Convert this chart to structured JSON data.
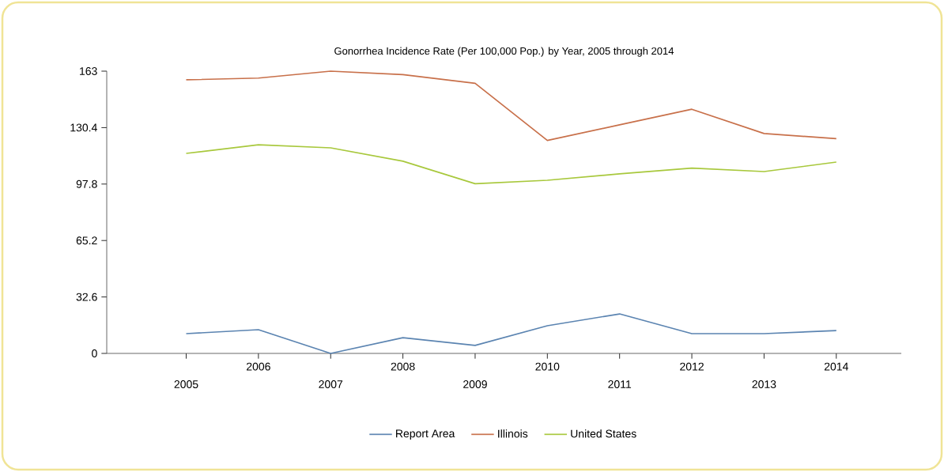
{
  "chart_data": {
    "type": "line",
    "title": "Gonorrhea Incidence Rate (Per 100,000 Pop.) by Year, 2005 through 2014",
    "categories": [
      "2005",
      "2006",
      "2007",
      "2008",
      "2009",
      "2010",
      "2011",
      "2012",
      "2013",
      "2014"
    ],
    "series": [
      {
        "name": "Report Area",
        "color": "#5b84b1",
        "values": [
          11.4,
          13.7,
          0,
          9.1,
          4.6,
          16,
          22.8,
          11.4,
          11.4,
          13.2
        ]
      },
      {
        "name": "Illinois",
        "color": "#c8704a",
        "values": [
          158,
          159,
          163,
          161,
          156,
          123,
          132,
          141,
          127,
          124
        ]
      },
      {
        "name": "United States",
        "color": "#a8c83c",
        "values": [
          115.5,
          120.5,
          118.7,
          111,
          98,
          100,
          103.7,
          107,
          105,
          110.5
        ]
      }
    ],
    "ylim": [
      0,
      163
    ],
    "yticks": [
      0,
      32.6,
      65.2,
      97.8,
      130.4,
      163
    ],
    "grid": false,
    "legend": "bottom",
    "marker": "none",
    "line_style": "solid"
  }
}
